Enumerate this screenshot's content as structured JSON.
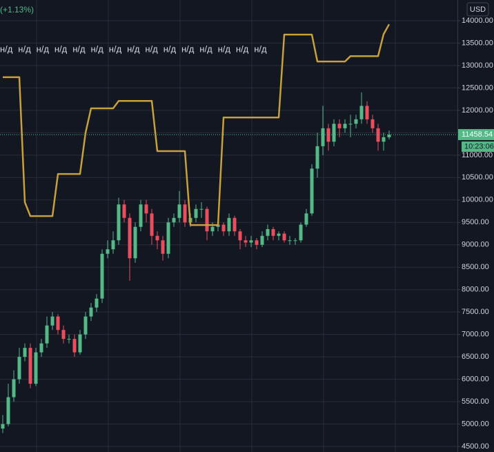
{
  "chart_data": {
    "type": "candlestick",
    "change_label": "(+1.13%)",
    "currency": "USD",
    "na_labels": [
      "н/д",
      "н/д",
      "н/д",
      "н/д",
      "н/д",
      "н/д",
      "н/д",
      "н/д",
      "н/д",
      "н/д",
      "н/д",
      "н/д",
      "н/д",
      "н/д",
      "н/д"
    ],
    "open": [
      4900,
      5000,
      5600,
      6000,
      6500,
      6700,
      5900,
      6600,
      6800,
      7200,
      7400,
      7100,
      6900,
      6900,
      6600,
      7000,
      7400,
      7600,
      7800,
      8800,
      8900,
      9100,
      9900,
      9600,
      8700,
      9400,
      9900,
      9700,
      9200,
      9100,
      8800,
      9500,
      9600,
      9900,
      9500,
      9600,
      9800,
      9800,
      9300,
      9400,
      9450,
      9300,
      9600,
      9300,
      9100,
      9050,
      9100,
      9000,
      9200,
      9350,
      9200,
      9250,
      9100,
      9100,
      9100,
      9450,
      9700,
      10700,
      11200,
      11600,
      11300,
      11700,
      11600,
      11700,
      11700,
      11800,
      12100,
      11800,
      11600,
      11300,
      11400
    ],
    "high": [
      5200,
      5900,
      6200,
      6700,
      6800,
      6800,
      6700,
      6900,
      7400,
      7500,
      7450,
      7200,
      7000,
      7000,
      7100,
      7500,
      7700,
      7900,
      8900,
      9100,
      9300,
      10050,
      10000,
      9700,
      9500,
      10000,
      10000,
      9800,
      9300,
      9200,
      9600,
      9700,
      10200,
      10000,
      9700,
      9900,
      9950,
      9850,
      9500,
      9550,
      9500,
      9700,
      9650,
      9350,
      9200,
      9200,
      9150,
      9300,
      9450,
      9400,
      9300,
      9300,
      9200,
      9150,
      9500,
      9800,
      10800,
      11500,
      12100,
      11700,
      11800,
      11800,
      11800,
      11900,
      11900,
      12400,
      12200,
      11900,
      11700,
      11500,
      11550
    ],
    "low": [
      4800,
      4950,
      5500,
      5900,
      6400,
      5800,
      5850,
      6500,
      6700,
      7100,
      7000,
      6800,
      6800,
      6500,
      6550,
      6900,
      7300,
      7500,
      7700,
      8700,
      8800,
      9000,
      9500,
      8200,
      8600,
      9300,
      9500,
      9000,
      8900,
      8650,
      8700,
      9400,
      9500,
      9400,
      9400,
      9500,
      9600,
      9100,
      9200,
      9300,
      9200,
      9200,
      9200,
      8900,
      8950,
      8950,
      8900,
      8950,
      9100,
      9100,
      9100,
      9050,
      9000,
      9000,
      9050,
      9400,
      9650,
      10500,
      11000,
      11100,
      11200,
      11400,
      11500,
      11400,
      11600,
      11700,
      11700,
      11500,
      11100,
      11100,
      11350
    ],
    "close": [
      5000,
      5600,
      6000,
      6500,
      6700,
      5900,
      6600,
      6800,
      7200,
      7400,
      7100,
      6900,
      6900,
      6600,
      7000,
      7400,
      7600,
      7800,
      8800,
      8900,
      9100,
      9900,
      9600,
      8700,
      9400,
      9900,
      9700,
      9200,
      9100,
      8800,
      9500,
      9600,
      9900,
      9500,
      9600,
      9800,
      9800,
      9300,
      9400,
      9450,
      9300,
      9600,
      9300,
      9100,
      9050,
      9100,
      9000,
      9200,
      9350,
      9200,
      9250,
      9100,
      9100,
      9100,
      9450,
      9700,
      10700,
      11200,
      11600,
      11300,
      11700,
      11600,
      11700,
      11700,
      11800,
      12100,
      11800,
      11600,
      11300,
      11400,
      11460
    ],
    "up_color": "#53b987",
    "down_color": "#eb4d5c",
    "overlay_values": [
      12740,
      12740,
      12740,
      12740,
      9950,
      9640,
      9640,
      9640,
      9640,
      9640,
      10580,
      10580,
      10580,
      10580,
      10580,
      11500,
      12045,
      12045,
      12045,
      12045,
      12045,
      12210,
      12210,
      12210,
      12210,
      12210,
      12210,
      12210,
      11090,
      11090,
      11090,
      11090,
      11090,
      11090,
      9440,
      9440,
      9440,
      9440,
      9440,
      9440,
      11840,
      11840,
      11840,
      11840,
      11840,
      11840,
      11840,
      11840,
      11840,
      11840,
      11840,
      13690,
      13690,
      13690,
      13690,
      13690,
      13690,
      13090,
      13090,
      13090,
      13090,
      13090,
      13090,
      13210,
      13210,
      13210,
      13210,
      13210,
      13210,
      13700,
      13920
    ],
    "overlay_color": "#c9a13a",
    "last_price": 11458.54,
    "countdown": "10:23:06",
    "ylim": [
      4377,
      14462
    ],
    "yticks": [
      {
        "value": 14000,
        "label": "14000.00"
      },
      {
        "value": 13500,
        "label": "13500.00"
      },
      {
        "value": 13000,
        "label": "13000.00"
      },
      {
        "value": 12500,
        "label": "12500.00"
      },
      {
        "value": 12000,
        "label": "12000.00"
      },
      {
        "value": 11500,
        "label": "11500.00"
      },
      {
        "value": 11000,
        "label": "11000.00"
      },
      {
        "value": 10500,
        "label": "10500.00"
      },
      {
        "value": 10000,
        "label": "10000.00"
      },
      {
        "value": 9500,
        "label": "9500.00"
      },
      {
        "value": 9000,
        "label": "9000.00"
      },
      {
        "value": 8500,
        "label": "8500.00"
      },
      {
        "value": 8000,
        "label": "8000.00"
      },
      {
        "value": 7500,
        "label": "7500.00"
      },
      {
        "value": 7000,
        "label": "7000.00"
      },
      {
        "value": 6500,
        "label": "6500.00"
      },
      {
        "value": 6000,
        "label": "6000.00"
      },
      {
        "value": 5500,
        "label": "5500.00"
      },
      {
        "value": 5000,
        "label": "5000.00"
      },
      {
        "value": 4500,
        "label": "4500.00"
      }
    ],
    "grid": true
  }
}
